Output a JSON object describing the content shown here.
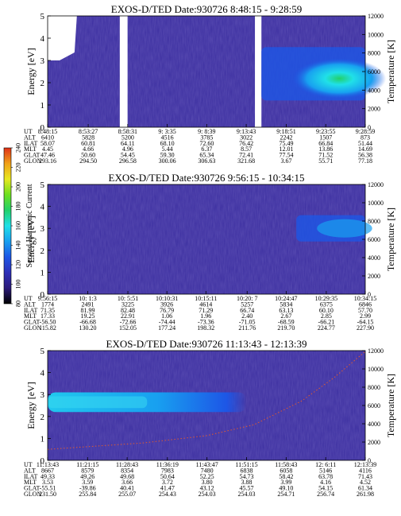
{
  "figure": {
    "colorbar": {
      "label": "Second Harmonic Current",
      "ticks": [
        80,
        100,
        120,
        140,
        160,
        180,
        200,
        220,
        240
      ],
      "range": [
        80,
        240
      ],
      "colors": [
        "#000000",
        "#2b1a7a",
        "#2d2fb8",
        "#1d56e6",
        "#18a0f0",
        "#20e0e8",
        "#22d06a",
        "#6ee020",
        "#e8e820",
        "#f0a018",
        "#e03018"
      ]
    },
    "background_color": "#3c2fa0"
  },
  "chart_data": [
    {
      "type": "heatmap",
      "title": "EXOS-D/TED   Date:930726  8:48:15 - 9:28:59",
      "ylabel": "Energy [eV]",
      "y2label": "Temperature [K]",
      "ylim": [
        0,
        5
      ],
      "yticks": [
        0,
        1,
        2,
        3,
        4,
        5
      ],
      "y2lim": [
        0,
        12000
      ],
      "y2ticks": [
        0,
        2000,
        4000,
        6000,
        8000,
        10000,
        12000
      ],
      "grid": false,
      "row_labels": [
        "UT",
        "ALT",
        "ILAT",
        "MLT",
        "GLAT",
        "GLON"
      ],
      "columns": [
        [
          "8:48:15",
          "6410",
          "58.07",
          "4.45",
          "47.46",
          "293.16"
        ],
        [
          "8:53:27",
          "5828",
          "60.81",
          "4.66",
          "50.60",
          "294.50"
        ],
        [
          "8:58:31",
          "5200",
          "64.11",
          "4.96",
          "54.45",
          "296.58"
        ],
        [
          "9: 3:35",
          "4516",
          "68.10",
          "5.44",
          "59.30",
          "300.06"
        ],
        [
          "9: 8:39",
          "3785",
          "72.60",
          "6.37",
          "65.34",
          "306.63"
        ],
        [
          "9:13:43",
          "3022",
          "76.42",
          "8.57",
          "72.41",
          "321.68"
        ],
        [
          "9:18:51",
          "2242",
          "75.49",
          "12.01",
          "77.54",
          "3.67"
        ],
        [
          "9:23:55",
          "1507",
          "66.84",
          "13.86",
          "71.52",
          "55.71"
        ],
        [
          "9:28:59",
          "873",
          "51.44",
          "14.69",
          "56.38",
          "77.18"
        ]
      ],
      "features": [
        {
          "kind": "white-gap",
          "from": "8:48:15",
          "to": "8:52:00",
          "energy": [
            3.0,
            5.0
          ]
        },
        {
          "kind": "white-gap",
          "from": "8:57:30",
          "to": "8:58:30",
          "energy": [
            0,
            5
          ]
        },
        {
          "kind": "white-gap",
          "from": "9:14:50",
          "to": "9:15:40",
          "energy": [
            0,
            5
          ]
        },
        {
          "kind": "enhancement",
          "from": "9:15:40",
          "to": "9:28:59",
          "energy": [
            1.2,
            3.6
          ],
          "peak_value": 200
        }
      ]
    },
    {
      "type": "heatmap",
      "title": "EXOS-D/TED   Date:930726  9:56:15 - 10:34:15",
      "ylabel": "Energy [eV]",
      "y2label": "Temperature [K]",
      "ylim": [
        0,
        5
      ],
      "yticks": [
        0,
        1,
        2,
        3,
        4,
        5
      ],
      "y2lim": [
        0,
        12000
      ],
      "y2ticks": [
        0,
        2000,
        4000,
        6000,
        8000,
        10000,
        12000
      ],
      "grid": false,
      "row_labels": [
        "UT",
        "ALT",
        "ILAT",
        "MLT",
        "GLAT",
        "GLON"
      ],
      "columns": [
        [
          "9:56:15",
          "1774",
          "71.35",
          "17.33",
          "-56.50",
          "115.82"
        ],
        [
          "10: 1:3",
          "2491",
          "81.99",
          "19.25",
          "-66.68",
          "130.20"
        ],
        [
          "10: 5:51",
          "3225",
          "82.48",
          "22.91",
          "-72.66",
          "152.05"
        ],
        [
          "10:10:31",
          "3926",
          "76.79",
          "1.06",
          "-74.44",
          "177.24"
        ],
        [
          "10:15:11",
          "4614",
          "71.29",
          "1.96",
          "-73.36",
          "198.32"
        ],
        [
          "10:20: 7",
          "5257",
          "66.74",
          "2.40",
          "-71.05",
          "211.76"
        ],
        [
          "10:24:47",
          "5834",
          "63.13",
          "2.67",
          "-68.59",
          "219.70"
        ],
        [
          "10:29:35",
          "6375",
          "60.10",
          "2.85",
          "-66.21",
          "224.77"
        ],
        [
          "10:34:15",
          "6846",
          "57.70",
          "2.99",
          "-64.15",
          "227.90"
        ]
      ],
      "features": [
        {
          "kind": "enhancement",
          "from": "10:26:00",
          "to": "10:34:15",
          "energy": [
            2.4,
            3.6
          ],
          "peak_value": 140
        }
      ]
    },
    {
      "type": "heatmap",
      "title": "EXOS-D/TED   Date:930726  11:13:43 - 12:13:39",
      "ylabel": "Energy [eV]",
      "y2label": "Temperature [K]",
      "ylim": [
        0,
        5
      ],
      "yticks": [
        0,
        1,
        2,
        3,
        4,
        5
      ],
      "y2lim": [
        0,
        12000
      ],
      "y2ticks": [
        0,
        2000,
        4000,
        6000,
        8000,
        10000,
        12000
      ],
      "grid": false,
      "row_labels": [
        "UT",
        "ALT",
        "ILAT",
        "MLT",
        "GLAT",
        "GLON"
      ],
      "columns": [
        [
          "11:13:43",
          "8667",
          "49.33",
          "3.53",
          "-55.51",
          "231.50"
        ],
        [
          "11:21:15",
          "8579",
          "49.26",
          "3.59",
          "-39.86",
          "255.84"
        ],
        [
          "11:28:43",
          "8354",
          "49.68",
          "3.66",
          "40.41",
          "255.07"
        ],
        [
          "11:36:19",
          "7983",
          "50.64",
          "3.72",
          "41.47",
          "254.43"
        ],
        [
          "11:43:47",
          "7480",
          "52.25",
          "3.80",
          "43.12",
          "254.03"
        ],
        [
          "11:51:15",
          "6838",
          "54.73",
          "3.88",
          "45.57",
          "254.03"
        ],
        [
          "11:58:43",
          "6058",
          "58.42",
          "3.99",
          "49.10",
          "254.71"
        ],
        [
          "12: 6:11",
          "5146",
          "63.78",
          "4.16",
          "54.15",
          "256.74"
        ],
        [
          "12:13:39",
          "4116",
          "71.43",
          "4.52",
          "61.34",
          "261.98"
        ]
      ],
      "features": [
        {
          "kind": "enhancement",
          "from": "11:13:43",
          "to": "11:51:15",
          "energy": [
            2.2,
            3.1
          ],
          "peak_value": 165
        },
        {
          "kind": "temperature-trace",
          "points": [
            [
              0,
              1200
            ],
            [
              0.3,
              1900
            ],
            [
              0.5,
              2700
            ],
            [
              0.65,
              3900
            ],
            [
              0.8,
              6500
            ],
            [
              0.9,
              9000
            ],
            [
              1.0,
              11900
            ]
          ]
        }
      ]
    }
  ]
}
